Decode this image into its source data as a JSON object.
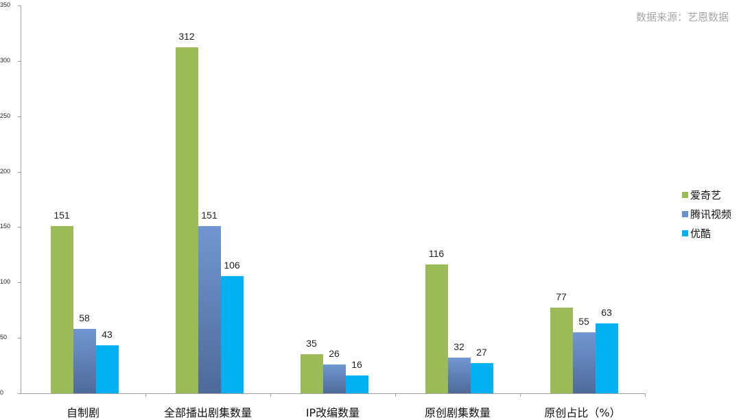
{
  "source_note": "数据来源：艺恩数据",
  "chart_data": {
    "type": "bar",
    "title": "",
    "xlabel": "",
    "ylabel": "",
    "ylim": [
      0,
      350
    ],
    "yticks": [
      "0",
      "50",
      "100",
      "150",
      "200",
      "250",
      "300",
      "350"
    ],
    "grid": false,
    "legend_position": "right",
    "categories": [
      "自制剧",
      "全部播出剧集数量",
      "IP改编数量",
      "原创剧集数量",
      "原创占比（%）"
    ],
    "series": [
      {
        "name": "爱奇艺",
        "color": "#9bbb59",
        "values": [
          151,
          312,
          35,
          116,
          77
        ]
      },
      {
        "name": "腾讯视频",
        "color": "#6b8fc8",
        "values": [
          58,
          151,
          26,
          32,
          55
        ]
      },
      {
        "name": "优酷",
        "color": "#00b0f0",
        "values": [
          43,
          106,
          16,
          27,
          63
        ]
      }
    ]
  }
}
